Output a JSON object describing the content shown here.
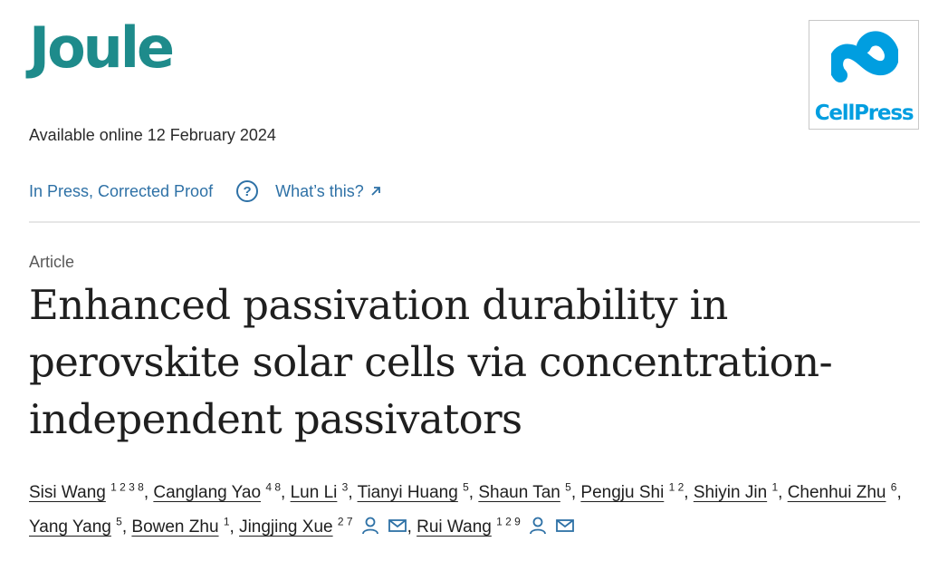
{
  "header": {
    "journal_name": "Joule",
    "publisher_name": "CellPress",
    "available_online": "Available online 12 February 2024",
    "status_link": "In Press, Corrected Proof",
    "whats_this_link": "What’s this?"
  },
  "article": {
    "type": "Article",
    "title": "Enhanced passivation durability in perovskite solar cells via concentration-independent passivators"
  },
  "authors": [
    {
      "name": "Sisi Wang",
      "affiliations": "1 2 3 8"
    },
    {
      "name": "Canglang Yao",
      "affiliations": "4 8"
    },
    {
      "name": "Lun Li",
      "affiliations": "3"
    },
    {
      "name": "Tianyi Huang",
      "affiliations": "5"
    },
    {
      "name": "Shaun Tan",
      "affiliations": "5"
    },
    {
      "name": "Pengju Shi",
      "affiliations": "1 2"
    },
    {
      "name": "Shiyin Jin",
      "affiliations": "1"
    },
    {
      "name": "Chenhui Zhu",
      "affiliations": "6"
    },
    {
      "name": "Yang Yang",
      "affiliations": "5"
    },
    {
      "name": "Bowen Zhu",
      "affiliations": "1"
    },
    {
      "name": "Jingjing Xue",
      "affiliations": "2 7"
    },
    {
      "name": "Rui Wang",
      "affiliations": "1 2 9"
    }
  ],
  "icons": {
    "help": "question-circle-icon",
    "external": "external-arrow-icon",
    "person": "person-icon",
    "mail": "envelope-icon"
  },
  "colors": {
    "journal_teal": "#1e8b8b",
    "link_blue": "#2e71a6",
    "publisher_blue": "#009ee0"
  }
}
